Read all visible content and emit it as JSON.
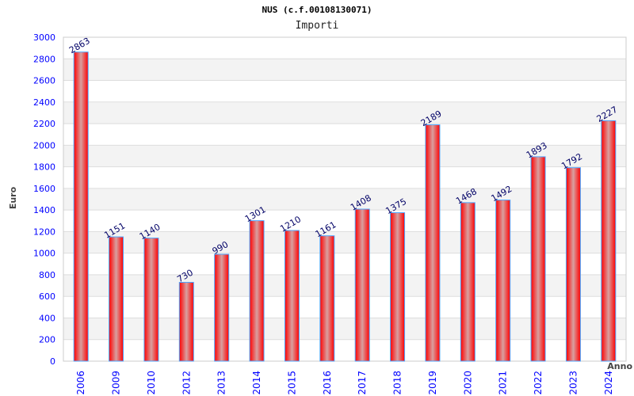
{
  "chart_data": {
    "type": "bar",
    "title": "NUS (c.f.00108130071)",
    "subtitle": "Importi",
    "xlabel": "Anno",
    "ylabel": "Euro",
    "categories": [
      "2006",
      "2009",
      "2010",
      "2012",
      "2013",
      "2014",
      "2015",
      "2016",
      "2017",
      "2018",
      "2019",
      "2020",
      "2021",
      "2022",
      "2023",
      "2024"
    ],
    "values": [
      2863,
      1151,
      1140,
      730,
      990,
      1301,
      1210,
      1161,
      1408,
      1375,
      2189,
      1468,
      1492,
      1893,
      1792,
      2227
    ],
    "ylim": [
      0,
      3000
    ],
    "yticks": [
      0,
      200,
      400,
      600,
      800,
      1000,
      1200,
      1400,
      1600,
      1800,
      2000,
      2200,
      2400,
      2600,
      2800,
      3000
    ],
    "grid": true,
    "colors": {
      "bar": "#ff0000",
      "bar_highlight": "#d8a0a0",
      "bar_border": "#4da6ff",
      "tick": "#0000ff",
      "label": "#000066"
    }
  }
}
